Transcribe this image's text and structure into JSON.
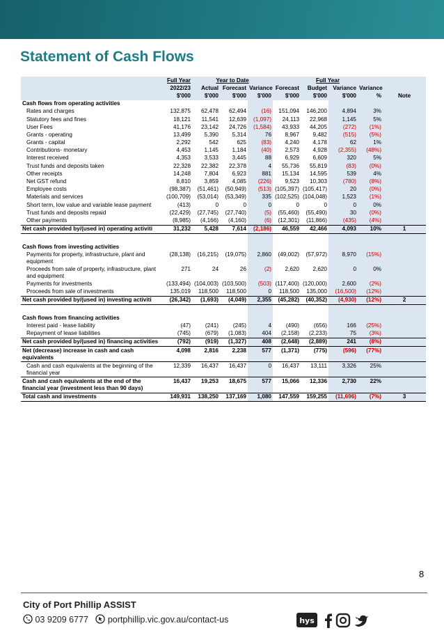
{
  "header": {
    "title": "Statement of Cash Flows"
  },
  "table": {
    "group_headers": [
      "Full Year",
      "Year to Date",
      "Full Year"
    ],
    "columns": [
      "2022/23",
      "Actual",
      "Forecast",
      "Variance",
      "Forecast",
      "Budget",
      "Variance",
      "Variance"
    ],
    "units": [
      "$'000",
      "$'000",
      "$'000",
      "$'000",
      "$'000",
      "$'000",
      "$'000",
      "%",
      "Note"
    ],
    "sections": [
      {
        "heading": "Cash flows from operating activities",
        "rows": [
          {
            "label": "Rates and charges",
            "cells": [
              "132,875",
              "62,478",
              "62,494",
              "(16)",
              "151,094",
              "146,200",
              "4,894",
              "3%"
            ]
          },
          {
            "label": "Statutory fees and fines",
            "cells": [
              "18,121",
              "11,541",
              "12,639",
              "(1,097)",
              "24,113",
              "22,968",
              "1,145",
              "5%"
            ]
          },
          {
            "label": "User Fees",
            "cells": [
              "41,176",
              "23,142",
              "24,726",
              "(1,584)",
              "43,933",
              "44,205",
              "(272)",
              "(1%)"
            ]
          },
          {
            "label": "Grants - operating",
            "cells": [
              "13,499",
              "5,390",
              "5,314",
              "76",
              "8,967",
              "9,482",
              "(515)",
              "(5%)"
            ]
          },
          {
            "label": "Grants - capital",
            "cells": [
              "2,292",
              "542",
              "625",
              "(83)",
              "4,240",
              "4,178",
              "62",
              "1%"
            ]
          },
          {
            "label": "Contributions- monetary",
            "cells": [
              "4,453",
              "1,145",
              "1,184",
              "(40)",
              "2,573",
              "4,928",
              "(2,355)",
              "(48%)"
            ]
          },
          {
            "label": "Interest received",
            "cells": [
              "4,353",
              "3,533",
              "3,445",
              "88",
              "6,929",
              "6,609",
              "320",
              "5%"
            ]
          },
          {
            "label": "Trust funds and deposits taken",
            "cells": [
              "22,328",
              "22,382",
              "22,378",
              "4",
              "55,736",
              "55,819",
              "(83)",
              "(0%)"
            ]
          },
          {
            "label": "Other receipts",
            "cells": [
              "14,248",
              "7,804",
              "6,923",
              "881",
              "15,134",
              "14,595",
              "539",
              "4%"
            ]
          },
          {
            "label": "Net GST refund",
            "cells": [
              "8,810",
              "3,859",
              "4,085",
              "(226)",
              "9,523",
              "10,303",
              "(780)",
              "(8%)"
            ]
          },
          {
            "label": "Employee costs",
            "cells": [
              "(98,387)",
              "(51,461)",
              "(50,949)",
              "(513)",
              "(105,397)",
              "(105,417)",
              "20",
              "(0%)"
            ]
          },
          {
            "label": "Materials and services",
            "cells": [
              "(100,709)",
              "(53,014)",
              "(53,349)",
              "335",
              "(102,525)",
              "(104,048)",
              "1,523",
              "(1%)"
            ]
          },
          {
            "label": "Short term, low value and variable lease payment",
            "cells": [
              "(413)",
              "0",
              "0",
              "0",
              "0",
              "0",
              "0",
              "0%"
            ]
          },
          {
            "label": "Trust funds and deposits repaid",
            "cells": [
              "(22,429)",
              "(27,745)",
              "(27,740)",
              "(5)",
              "(55,460)",
              "(55,490)",
              "30",
              "(0%)"
            ]
          },
          {
            "label": "Other payments",
            "cells": [
              "(8,985)",
              "(4,166)",
              "(4,160)",
              "(6)",
              "(12,301)",
              "(11,866)",
              "(435)",
              "(4%)"
            ]
          }
        ],
        "total": {
          "label": "Net cash provided by/(used in) operating activiti",
          "cells": [
            "31,232",
            "5,428",
            "7,614",
            "(2,186)",
            "46,559",
            "42,466",
            "4,093",
            "10%"
          ],
          "note": "1"
        }
      },
      {
        "heading": "Cash flows from investing activities",
        "rows": [
          {
            "label": "Payments for property, infrastructure, plant and equipment",
            "cells": [
              "(28,138)",
              "(16,215)",
              "(19,075)",
              "2,860",
              "(49,002)",
              "(57,972)",
              "8,970",
              "(15%)"
            ]
          },
          {
            "label": "Proceeds from sale of property, infrastructure, plant and equipment",
            "cells": [
              "271",
              "24",
              "26",
              "(2)",
              "2,620",
              "2,620",
              "0",
              "0%"
            ]
          },
          {
            "label": "Payments for investments",
            "cells": [
              "(133,494)",
              "(104,003)",
              "(103,500)",
              "(503)",
              "(117,400)",
              "(120,000)",
              "2,600",
              "(2%)"
            ]
          },
          {
            "label": "Proceeds from sale of investments",
            "cells": [
              "135,019",
              "118,500",
              "118,500",
              "0",
              "118,500",
              "135,000",
              "(16,500)",
              "(12%)"
            ]
          }
        ],
        "total": {
          "label": "Net cash provided by/(used in) investing activiti",
          "cells": [
            "(26,342)",
            "(1,693)",
            "(4,049)",
            "2,355",
            "(45,282)",
            "(40,352)",
            "(4,930)",
            "(12%)"
          ],
          "note": "2"
        }
      },
      {
        "heading": "Cash flows from financing activities",
        "rows": [
          {
            "label": "Interest paid - lease liability",
            "cells": [
              "(47)",
              "(241)",
              "(245)",
              "4",
              "(490)",
              "(656)",
              "166",
              "(25%)"
            ]
          },
          {
            "label": "Repayment of lease liabilities",
            "cells": [
              "(745)",
              "(679)",
              "(1,083)",
              "404",
              "(2,158)",
              "(2,233)",
              "75",
              "(3%)"
            ]
          }
        ],
        "total": {
          "label": "Net cash provided by/(used in) financing activities",
          "cells": [
            "(792)",
            "(919)",
            "(1,327)",
            "408",
            "(2,648)",
            "(2,889)",
            "241",
            "(8%)"
          ]
        }
      }
    ],
    "summary": [
      {
        "label": "Net (decrease) increase in cash and cash equivalents",
        "cells": [
          "4,098",
          "2,816",
          "2,238",
          "577",
          "(1,371)",
          "(775)",
          "(596)",
          "(77%)"
        ],
        "bold": true
      },
      {
        "label": "Cash and cash equivalents at the beginning of the financial year",
        "cells": [
          "12,339",
          "16,437",
          "16,437",
          "0",
          "16,437",
          "13,111",
          "3,326",
          "25%"
        ],
        "bold": false
      },
      {
        "label": "Cash and cash equivalents at the end of the financial year (investment less than 90 days)",
        "cells": [
          "16,437",
          "19,253",
          "18,675",
          "577",
          "15,066",
          "12,336",
          "2,730",
          "22%"
        ],
        "bold": true
      },
      {
        "label": "Total cash and investments",
        "cells": [
          "149,931",
          "138,250",
          "137,169",
          "1,080",
          "147,559",
          "159,255",
          "(11,696)",
          "(7%)"
        ],
        "bold": true,
        "note": "3"
      }
    ]
  },
  "page_number": "8",
  "footer": {
    "org": "City of Port Phillip ASSIST",
    "phone": "03 9209 6777",
    "web": "portphillip.vic.gov.au/contact-us",
    "logo": "hys"
  }
}
